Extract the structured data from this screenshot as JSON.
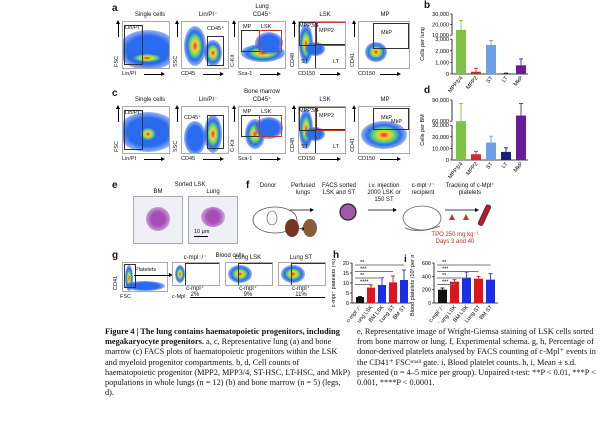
{
  "panels": {
    "a": "a",
    "b": "b",
    "c": "c",
    "d": "d",
    "e": "e",
    "f": "f",
    "g": "g",
    "h": "h",
    "i": "i"
  },
  "row_a": {
    "tissue": "Lung",
    "tissue2": "CD45⁺",
    "titles": [
      "Single cells",
      "Lin/PI⁻",
      "LSK",
      "MP"
    ],
    "gates": {
      "linpi": "Lin/PI⁻",
      "cd45": "CD45⁺",
      "mp": "MP",
      "lsk": "LSK",
      "mpp34": "MPP3/4",
      "mpp2": "MPP2",
      "st": "ST",
      "lt": "LT",
      "mkp": "MkP"
    },
    "axes": {
      "fsc": "FSC",
      "linpi": "Lin/PI",
      "ssc": "SSC",
      "cd45": "CD45",
      "ckit": "C-Kit",
      "sca1": "Sca-1",
      "cd48": "CD48",
      "cd150": "CD150",
      "cd41": "CD41",
      "cd150b": "CD150"
    }
  },
  "row_c": {
    "tissue": "Bone marrow",
    "tissue2": "CD45⁺",
    "titles": [
      "Single cells",
      "Lin/PI⁻",
      "LSK",
      "MP"
    ],
    "gates": {
      "linpi": "Lin/PI⁻",
      "cd45": "CD45⁺",
      "mp": "MP",
      "lsk": "LSK",
      "mpp34": "MPP3/4",
      "mpp2": "MPP2",
      "st": "ST",
      "lt": "LT",
      "mkp": "MkP",
      "mkp2": "MkP"
    },
    "axes": {
      "fsc": "FSC",
      "linpi": "Lin/PI",
      "ssc": "SSC",
      "cd45": "CD45",
      "ckit": "C-Kit",
      "sca1": "Sca-1",
      "cd48": "CD48",
      "cd150": "CD150",
      "cd41": "CD41",
      "cd150b": "CD150"
    }
  },
  "panel_e": {
    "title": "Sorted LSK",
    "bm": "BM",
    "lung": "Lung",
    "scale": "10 μm"
  },
  "panel_f": {
    "donor": "Donor",
    "perfused": "Perfused lungs",
    "facs": "FACS sorted LSK and ST",
    "injection": "i.v. injection 2000 LSK or 150 ST",
    "recipient": "c-mpl⁻/⁻ recipient",
    "tracking": "Tracking of c-Mpl⁺ platelets",
    "tpo": "TPO 250 mg kg⁻¹",
    "days": "Days 3 and 40"
  },
  "panel_g": {
    "title": "Blood cells",
    "platelets": "Platelets",
    "plots": [
      {
        "title": "c-mpl⁻/⁻",
        "label": "c-mpl⁺",
        "pct": "2%"
      },
      {
        "title": "Lung LSK",
        "label": "c-mpl⁺",
        "pct": "9%"
      },
      {
        "title": "Lung ST",
        "label": "c-mpl⁺",
        "pct": "11%"
      }
    ],
    "cd41": "CD41",
    "fsc": "FSC",
    "cmpl": "c-Mpl"
  },
  "chart_data": [
    {
      "id": "b",
      "type": "bar",
      "ylabel": "Cells per lung",
      "categories": [
        "MPP3/4",
        "MPP2",
        "ST",
        "LT",
        "MkP"
      ],
      "values": [
        15000,
        200,
        2500,
        50,
        750
      ],
      "errors": [
        9000,
        300,
        400,
        30,
        550
      ],
      "colors": [
        "#7dc243",
        "#d62728",
        "#6f9ee8",
        "#1c1c7c",
        "#6a1b9a"
      ],
      "axis_break": {
        "lower": [
          0,
          3000
        ],
        "upper": [
          10000,
          30000
        ]
      },
      "yticks": [
        "0",
        "1,000",
        "2,000",
        "3,000",
        "10,000",
        "20,000",
        "30,000"
      ],
      "ytick_values": [
        0,
        1000,
        2000,
        3000,
        10000,
        20000,
        30000
      ]
    },
    {
      "id": "d",
      "type": "bar",
      "ylabel": "Cells per BM",
      "categories": [
        "MPP3/4",
        "MPP2",
        "ST",
        "LT",
        "MkP"
      ],
      "values": [
        60000,
        5000,
        15000,
        7000,
        68000
      ],
      "errors": [
        25000,
        2500,
        5500,
        3500,
        17000
      ],
      "colors": [
        "#7dc243",
        "#d62728",
        "#6f9ee8",
        "#1c1c7c",
        "#6a1b9a"
      ],
      "axis_break": {
        "lower": [
          0,
          30000
        ],
        "upper": [
          60000,
          90000
        ]
      },
      "yticks": [
        "0",
        "10,000",
        "20,000",
        "30,000",
        "60,000",
        "90,000"
      ],
      "ytick_values": [
        0,
        10000,
        20000,
        30000,
        60000,
        90000
      ]
    },
    {
      "id": "h",
      "type": "bar",
      "ylabel": "c-mpl⁺ platelets (%)",
      "categories": [
        "c-mpl⁻/⁻",
        "Lung LSK",
        "BM LSK",
        "Lung ST",
        "BM ST"
      ],
      "values": [
        3,
        7.7,
        9,
        10.3,
        11.5
      ],
      "errors": [
        0.3,
        1.3,
        3.6,
        3.2,
        5
      ],
      "colors": [
        "#111111",
        "#e0141e",
        "#1a2ee6",
        "#e0141e",
        "#1a2ee6"
      ],
      "ylim": [
        0,
        20
      ],
      "yticks": [
        "0",
        "5",
        "10",
        "15",
        "20"
      ],
      "ytick_values": [
        0,
        5,
        10,
        15,
        20
      ],
      "significance": [
        "****",
        "**",
        "***",
        "**"
      ]
    },
    {
      "id": "i",
      "type": "bar",
      "ylabel": "Blood platelets (10³ per ml)",
      "categories": [
        "c-mpl⁻/⁻",
        "Lung LSK",
        "BM LSK",
        "Lung ST",
        "BM ST"
      ],
      "values": [
        200,
        320,
        380,
        365,
        350
      ],
      "errors": [
        25,
        30,
        85,
        35,
        90
      ],
      "colors": [
        "#111111",
        "#e0141e",
        "#1a2ee6",
        "#e0141e",
        "#1a2ee6"
      ],
      "ylim": [
        0,
        600
      ],
      "yticks": [
        "0",
        "200",
        "400",
        "600"
      ],
      "ytick_values": [
        0,
        200,
        400,
        600
      ],
      "significance": [
        "***",
        "**",
        "***",
        "**"
      ]
    }
  ],
  "caption": {
    "left_bold": "Figure 4 | The lung contains haematopoietic progenitors, including megakaryocyte progenitors.",
    "left_text": " a, c, Representative lung (a) and bone marrow (c) FACS plots of haematopoietic progenitors within the LSK and myeloid progenitor compartments. b, d, Cell counts of haematopoietic progenitor (MPP2, MPP3/4, ST-HSC, LT-HSC, and MkP) populations in whole lungs (n = 12) (b) and bone marrow (n = 5) (legs, d).",
    "right_text": "e, Representative image of Wright-Giemsa staining of LSK cells sorted from bone marrow or lung. f, Experimental schema. g, h, Percentage of donor-derived platelets analysed by FACS counting of c-Mpl⁺ events in the CD41⁺ FSCˢᵐᵃˡˡ gate. i, Blood platelet counts. h, i, Mean ± s.d. presented (n = 4–5 mice per group). Unpaired t-test: **P < 0.01, ***P < 0.001, ****P < 0.0001."
  }
}
